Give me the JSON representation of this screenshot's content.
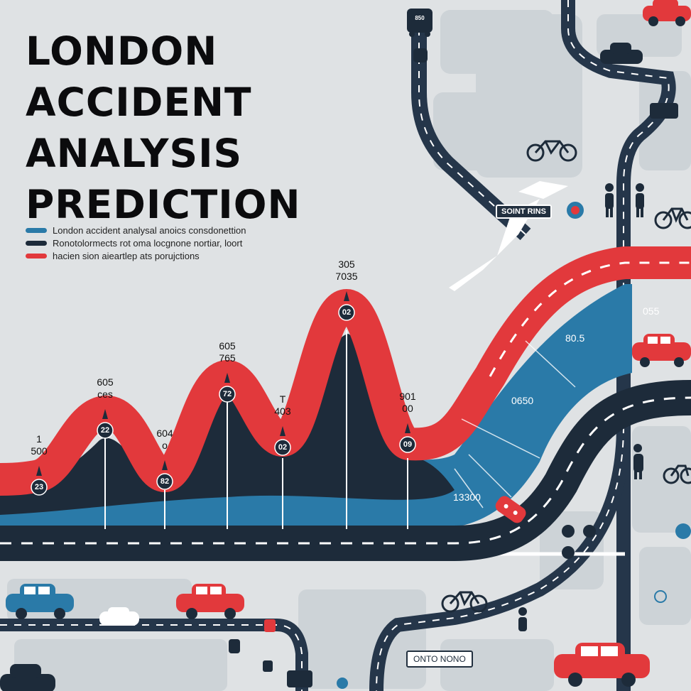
{
  "title_lines": [
    "LONDON",
    "ACCIDENT",
    "ANALYSIS",
    "PREDICTION"
  ],
  "legend": [
    {
      "label": "London accident analysal anoics consdonettion",
      "color": "#2a7aa8"
    },
    {
      "label": "Ronotolormects rot oma locgnone nortiar, loort",
      "color": "#1d2b3a"
    },
    {
      "label": "hacien sion aieartlep ats porujctions",
      "color": "#e2393c"
    }
  ],
  "peaks": [
    {
      "top": "1",
      "bottom": "500",
      "badge": "23"
    },
    {
      "top": "605",
      "bottom": "ces",
      "badge": "22"
    },
    {
      "top": "604",
      "bottom": "o",
      "badge": "82"
    },
    {
      "top": "605",
      "bottom": "765",
      "badge": "72"
    },
    {
      "top": "T",
      "bottom": "403",
      "badge": "02"
    },
    {
      "top": "305",
      "bottom": "7035",
      "badge": "02"
    },
    {
      "top": "901",
      "bottom": "00",
      "badge": "09"
    }
  ],
  "area_labels": {
    "a": "80.5",
    "b": "0650",
    "c": "13300",
    "d": "055"
  },
  "signs": {
    "main": "SOINT RINS",
    "bottom": "ONTO NONO",
    "bus": "850"
  },
  "colors": {
    "red": "#e2393c",
    "navy": "#1d2b3a",
    "blue": "#2a7aa8",
    "map": "#c9d0d4",
    "bg": "#dfe2e4"
  }
}
